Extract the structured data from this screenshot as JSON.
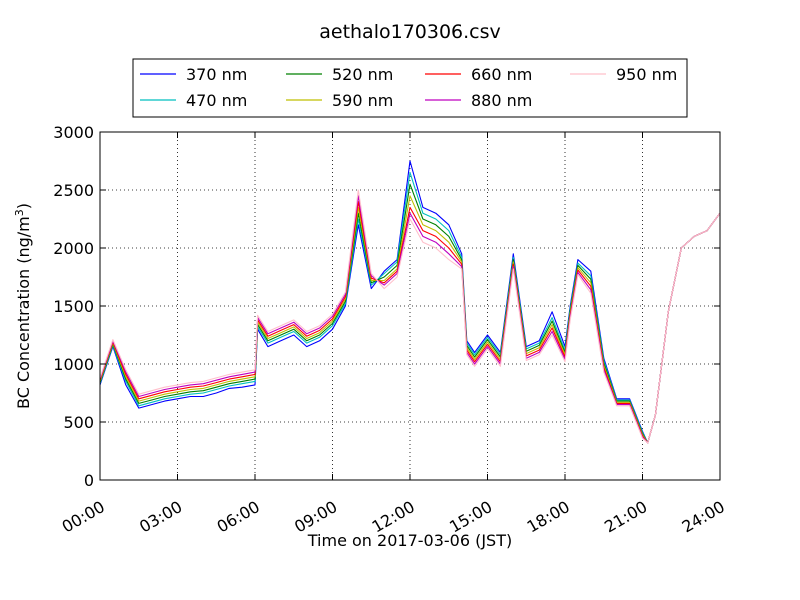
{
  "chart_data": {
    "type": "line",
    "title": "aethalo170306.csv",
    "xlabel": "Time on 2017-03-06 (JST)",
    "ylabel": "BC Concentration (ng/m",
    "ylabel_sup": "3",
    "ylabel_end": ")",
    "xlim": [
      0,
      24
    ],
    "ylim": [
      0,
      3000
    ],
    "grid": true,
    "legend_placement": "top-center",
    "x_ticks": [
      0,
      3,
      6,
      9,
      12,
      15,
      18,
      21,
      24
    ],
    "x_tick_labels": [
      "00:00",
      "03:00",
      "06:00",
      "09:00",
      "12:00",
      "15:00",
      "18:00",
      "21:00",
      "24:00"
    ],
    "y_ticks": [
      0,
      500,
      1000,
      1500,
      2000,
      2500,
      3000
    ],
    "y_tick_labels": [
      "0",
      "500",
      "1000",
      "1500",
      "2000",
      "2500",
      "3000"
    ],
    "x": [
      0,
      0.5,
      1,
      1.5,
      2,
      2.5,
      3,
      3.5,
      4,
      4.5,
      5,
      5.5,
      6,
      6.1,
      6.5,
      7,
      7.5,
      8,
      8.5,
      9,
      9.5,
      10,
      10.5,
      11,
      11.5,
      12,
      12.5,
      13,
      13.5,
      14,
      14.2,
      14.5,
      15,
      15.5,
      16,
      16.5,
      17,
      17.5,
      18,
      18.2,
      18.5,
      19,
      19.5,
      20,
      20.5,
      21,
      21.2,
      21.5,
      22,
      22.5,
      23,
      23.5,
      24
    ],
    "series": [
      {
        "name": "370 nm",
        "color": "#0000ff",
        "values": [
          820,
          1150,
          820,
          620,
          650,
          680,
          700,
          720,
          720,
          750,
          790,
          800,
          820,
          1300,
          1150,
          1200,
          1250,
          1150,
          1200,
          1300,
          1500,
          2200,
          1650,
          1800,
          1900,
          2750,
          2350,
          2300,
          2200,
          1950,
          1200,
          1100,
          1250,
          1100,
          1950,
          1150,
          1200,
          1450,
          1150,
          1500,
          1900,
          1800,
          1050,
          700,
          700,
          420,
          320,
          560,
          1450,
          2000,
          2100,
          2150,
          2300
        ]
      },
      {
        "name": "470 nm",
        "color": "#00bfbf",
        "values": [
          830,
          1160,
          850,
          640,
          670,
          700,
          720,
          740,
          750,
          780,
          810,
          830,
          850,
          1320,
          1180,
          1230,
          1280,
          1180,
          1230,
          1330,
          1520,
          2250,
          1680,
          1780,
          1880,
          2650,
          2300,
          2250,
          2150,
          1920,
          1180,
          1080,
          1230,
          1080,
          1920,
          1130,
          1180,
          1400,
          1120,
          1480,
          1870,
          1760,
          1030,
          690,
          690,
          410,
          320,
          560,
          1450,
          2000,
          2100,
          2150,
          2300
        ]
      },
      {
        "name": "520 nm",
        "color": "#008000",
        "values": [
          840,
          1170,
          870,
          660,
          690,
          720,
          740,
          760,
          770,
          800,
          830,
          850,
          870,
          1340,
          1200,
          1250,
          1300,
          1200,
          1250,
          1350,
          1540,
          2300,
          1700,
          1750,
          1850,
          2550,
          2250,
          2200,
          2100,
          1900,
          1160,
          1060,
          1210,
          1060,
          1900,
          1110,
          1160,
          1370,
          1100,
          1460,
          1850,
          1730,
          1010,
          680,
          680,
          400,
          320,
          560,
          1450,
          2000,
          2100,
          2150,
          2300
        ]
      },
      {
        "name": "590 nm",
        "color": "#bfbf00",
        "values": [
          850,
          1180,
          890,
          680,
          710,
          740,
          760,
          780,
          790,
          820,
          850,
          870,
          890,
          1360,
          1220,
          1270,
          1320,
          1220,
          1270,
          1370,
          1560,
          2350,
          1720,
          1720,
          1820,
          2450,
          2200,
          2150,
          2050,
          1880,
          1140,
          1040,
          1190,
          1040,
          1880,
          1090,
          1140,
          1340,
          1080,
          1440,
          1830,
          1700,
          990,
          670,
          670,
          390,
          320,
          560,
          1450,
          2000,
          2100,
          2150,
          2300
        ]
      },
      {
        "name": "660 nm",
        "color": "#ff0000",
        "values": [
          860,
          1190,
          910,
          700,
          730,
          760,
          780,
          800,
          810,
          840,
          870,
          890,
          910,
          1380,
          1240,
          1290,
          1340,
          1240,
          1290,
          1390,
          1580,
          2400,
          1740,
          1700,
          1800,
          2350,
          2150,
          2100,
          2000,
          1860,
          1120,
          1020,
          1170,
          1020,
          1860,
          1070,
          1120,
          1310,
          1060,
          1420,
          1810,
          1670,
          970,
          660,
          660,
          380,
          320,
          560,
          1450,
          2000,
          2100,
          2150,
          2300
        ]
      },
      {
        "name": "880 nm",
        "color": "#bf00bf",
        "values": [
          870,
          1200,
          930,
          720,
          750,
          780,
          800,
          820,
          830,
          860,
          890,
          910,
          930,
          1400,
          1260,
          1310,
          1360,
          1260,
          1310,
          1410,
          1600,
          2450,
          1760,
          1680,
          1780,
          2300,
          2100,
          2050,
          1950,
          1840,
          1100,
          1000,
          1150,
          1000,
          1840,
          1050,
          1100,
          1280,
          1040,
          1400,
          1790,
          1640,
          950,
          650,
          650,
          370,
          320,
          560,
          1450,
          2000,
          2100,
          2150,
          2300
        ]
      },
      {
        "name": "950 nm",
        "color": "#ffc0cb",
        "values": [
          880,
          1210,
          950,
          740,
          770,
          800,
          820,
          840,
          850,
          880,
          910,
          930,
          950,
          1420,
          1280,
          1330,
          1380,
          1280,
          1330,
          1430,
          1620,
          2500,
          1780,
          1650,
          1750,
          2250,
          2050,
          2000,
          1900,
          1820,
          1080,
          980,
          1130,
          980,
          1820,
          1030,
          1080,
          1250,
          1020,
          1380,
          1770,
          1610,
          930,
          640,
          640,
          360,
          320,
          560,
          1450,
          2000,
          2100,
          2150,
          2300
        ]
      }
    ]
  }
}
